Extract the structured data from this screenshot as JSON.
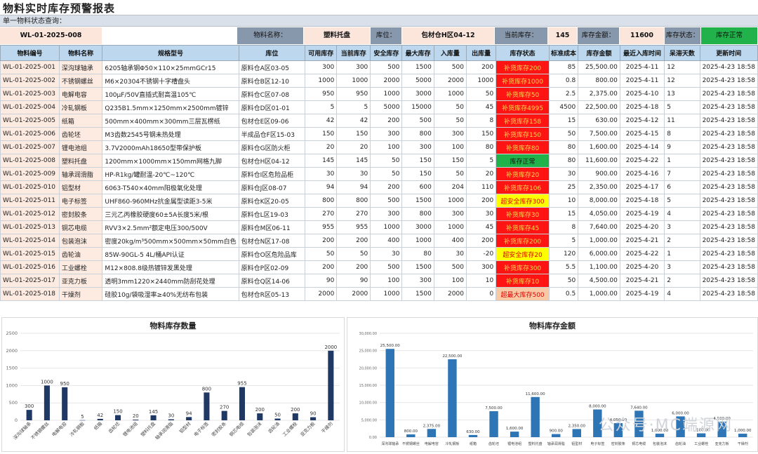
{
  "title": "物料实时库存预警报表",
  "subbar": "单一物料状态查询：",
  "query": {
    "code": "WL-01-2025-008",
    "name_label": "物料名称：",
    "name_value": "塑料托盘",
    "loc_label": "库位：",
    "loc_value": "包材仓H区04-12",
    "stock_label": "当前库存：",
    "stock_value": "145",
    "amount_label": "库存金额：",
    "amount_value": "11600",
    "status_label": "库存状态：",
    "status_value": "库存正常"
  },
  "table": {
    "headers": [
      "物料编号",
      "物料名称",
      "规格型号",
      "库位",
      "可用库存",
      "当前库存",
      "安全库存",
      "最大库存",
      "入库量",
      "出库量",
      "库存状态",
      "标准成本",
      "库存金额",
      "最近入库时间",
      "呆滞天数",
      "更新时间"
    ],
    "rows": [
      [
        "WL-01-2025-001",
        "深沟球轴承",
        "6205轴承钢Φ50×110×25mmGCr15",
        "原料仓A区03-05",
        "300",
        "300",
        "500",
        "1500",
        "500",
        "200",
        "补货库存200",
        "85",
        "25,500.00",
        "2025-4-11",
        "12",
        "2025-4-23 18:58"
      ],
      [
        "WL-01-2025-002",
        "不锈钢螺丝",
        "M6×20304不锈钢十字槽盘头",
        "原料仓B区12-10",
        "1000",
        "1000",
        "2000",
        "5000",
        "2000",
        "1000",
        "补货库存1000",
        "0.8",
        "800.00",
        "2025-4-11",
        "12",
        "2025-4-23 18:58"
      ],
      [
        "WL-01-2025-003",
        "电解电容",
        "100μF/50V直插式耐高温105℃",
        "原料仓C区07-08",
        "950",
        "950",
        "1000",
        "3000",
        "1000",
        "50",
        "补货库存50",
        "2.5",
        "2,375.00",
        "2025-4-10",
        "13",
        "2025-4-23 18:58"
      ],
      [
        "WL-01-2025-004",
        "冷轧钢板",
        "Q235B1.5mm×1250mm×2500mm镀锌",
        "原料仓D区01-01",
        "5",
        "5",
        "5000",
        "15000",
        "50",
        "45",
        "补货库存4995",
        "4500",
        "22,500.00",
        "2025-4-18",
        "5",
        "2025-4-23 18:58"
      ],
      [
        "WL-01-2025-005",
        "纸箱",
        "500mm×400mm×300mm三层瓦楞纸",
        "包材仓E区09-06",
        "42",
        "42",
        "200",
        "500",
        "50",
        "8",
        "补货库存158",
        "15",
        "630.00",
        "2025-4-12",
        "11",
        "2025-4-23 18:58"
      ],
      [
        "WL-01-2025-006",
        "齿轮坯",
        "M3齿数2545号钢未热处理",
        "半成品仓F区15-03",
        "150",
        "150",
        "300",
        "800",
        "300",
        "150",
        "补货库存150",
        "50",
        "7,500.00",
        "2025-4-15",
        "8",
        "2025-4-23 18:58"
      ],
      [
        "WL-01-2025-007",
        "锂电池组",
        "3.7V2000mAh18650型带保护板",
        "原料仓G区防火柜",
        "20",
        "20",
        "100",
        "300",
        "100",
        "80",
        "补货库存80",
        "80",
        "1,600.00",
        "2025-4-14",
        "9",
        "2025-4-23 18:58"
      ],
      [
        "WL-01-2025-008",
        "塑料托盘",
        "1200mm×1000mm×150mm网格九脚",
        "包材仓H区04-12",
        "145",
        "145",
        "50",
        "150",
        "150",
        "5",
        "库存正常",
        "80",
        "11,600.00",
        "2025-4-22",
        "1",
        "2025-4-23 18:58"
      ],
      [
        "WL-01-2025-009",
        "轴承润滑脂",
        "HP-R1kg/罐耐温-20℃~120℃",
        "原料仓I区危险品柜",
        "30",
        "30",
        "50",
        "150",
        "50",
        "20",
        "补货库存20",
        "30",
        "900.00",
        "2025-4-16",
        "7",
        "2025-4-23 18:58"
      ],
      [
        "WL-01-2025-010",
        "铝型材",
        "6063-T540×40mm阳极氧化处理",
        "原料仓J区08-07",
        "94",
        "94",
        "200",
        "600",
        "204",
        "110",
        "补货库存106",
        "25",
        "2,350.00",
        "2025-4-17",
        "6",
        "2025-4-23 18:58"
      ],
      [
        "WL-01-2025-011",
        "电子标签",
        "UHF860-960MHz抗金属型读距3-5米",
        "原料仓K区20-05",
        "800",
        "800",
        "500",
        "1500",
        "1000",
        "200",
        "超安全库存300",
        "10",
        "8,000.00",
        "2025-4-18",
        "5",
        "2025-4-23 18:58"
      ],
      [
        "WL-01-2025-012",
        "密封胶条",
        "三元乙丙橡胶硬度60±5A长度5米/根",
        "原料仓L区19-03",
        "270",
        "270",
        "300",
        "800",
        "300",
        "30",
        "补货库存30",
        "15",
        "4,050.00",
        "2025-4-19",
        "4",
        "2025-4-23 18:58"
      ],
      [
        "WL-01-2025-013",
        "铜芯电缆",
        "RVV3×2.5mm²额定电压300/500V",
        "原料仓M区06-11",
        "955",
        "955",
        "1000",
        "3000",
        "1000",
        "45",
        "补货库存45",
        "8",
        "7,640.00",
        "2025-4-20",
        "3",
        "2025-4-23 18:58"
      ],
      [
        "WL-01-2025-014",
        "包装泡沫",
        "密度20kg/m³500mm×500mm×50mm白色",
        "包材仓N区17-08",
        "200",
        "200",
        "400",
        "1000",
        "400",
        "200",
        "补货库存200",
        "5",
        "1,000.00",
        "2025-4-21",
        "2",
        "2025-4-23 18:58"
      ],
      [
        "WL-01-2025-015",
        "齿轮油",
        "85W-90GL-5 4L/桶API认证",
        "原料仓O区危险品库",
        "50",
        "50",
        "30",
        "80",
        "30",
        "-20",
        "超安全库存20",
        "120",
        "6,000.00",
        "2025-4-22",
        "1",
        "2025-4-23 18:58"
      ],
      [
        "WL-01-2025-016",
        "工业螺栓",
        "M12×808.8级热镀锌发黑处理",
        "原料仓P区02-09",
        "200",
        "200",
        "500",
        "1500",
        "500",
        "300",
        "补货库存300",
        "5.5",
        "1,100.00",
        "2025-4-20",
        "3",
        "2025-4-23 18:58"
      ],
      [
        "WL-01-2025-017",
        "亚克力板",
        "透明3mm1220×2440mm防刮花处理",
        "原料仓Q区14-06",
        "90",
        "90",
        "100",
        "300",
        "100",
        "10",
        "补货库存10",
        "50",
        "4,500.00",
        "2025-4-21",
        "2",
        "2025-4-23 18:58"
      ],
      [
        "WL-01-2025-018",
        "干燥剂",
        "硅胶10g/袋吸湿率≥40%无纺布包装",
        "包材仓R区05-13",
        "2000",
        "2000",
        "1000",
        "1500",
        "2000",
        "0",
        "超最大库存500",
        "0.5",
        "1,000.00",
        "2025-4-19",
        "4",
        "2025-4-23 18:58"
      ]
    ],
    "status_kind": [
      "red",
      "red",
      "red",
      "red",
      "red",
      "red",
      "red",
      "green",
      "red",
      "red",
      "yellow",
      "red",
      "red",
      "red",
      "yellow",
      "red",
      "red",
      "orange"
    ],
    "status_colors": {
      "red": "#ff1414",
      "green": "#22b24c",
      "yellow": "#ffff00",
      "orange": "#f9c9a6"
    }
  },
  "chart_data": [
    {
      "type": "bar",
      "title": "物料库存数量",
      "categories": [
        "深沟球轴承",
        "不锈钢螺丝",
        "电解电容",
        "冷轧钢板",
        "纸箱",
        "齿轮坯",
        "锂电池组",
        "塑料托盘",
        "轴承润滑脂",
        "铝型材",
        "电子标签",
        "密封胶条",
        "铜芯电缆",
        "包装泡沫",
        "齿轮油",
        "工业螺栓",
        "亚克力板",
        "干燥剂"
      ],
      "values": [
        300,
        1000,
        950,
        5,
        42,
        150,
        20,
        145,
        30,
        94,
        800,
        270,
        955,
        200,
        50,
        200,
        90,
        2000
      ],
      "ylim": [
        0,
        2500
      ],
      "yticks": [
        0,
        500,
        1000,
        1500,
        2000,
        2500
      ],
      "color": "#1f3864"
    },
    {
      "type": "bar",
      "title": "物料库存金额",
      "categories": [
        "深沟球轴承",
        "不锈钢螺丝",
        "电解电容",
        "冷轧钢板",
        "纸箱",
        "齿轮坯",
        "锂电池组",
        "塑料托盘",
        "轴承润滑脂",
        "铝型材",
        "电子标签",
        "密封胶条",
        "铜芯电缆",
        "包装泡沫",
        "齿轮油",
        "工业螺栓",
        "亚克力板",
        "干燥剂"
      ],
      "values": [
        25500,
        800,
        2375,
        22500,
        630,
        7500,
        1600,
        11600,
        900,
        2350,
        8000,
        4050,
        7640,
        1000,
        6000,
        1100,
        4500,
        1000
      ],
      "value_labels": [
        "25,500.00",
        "800.00",
        "2,375.00",
        "22,500.00",
        "630.00",
        "7,500.00",
        "1,600.00",
        "11,600.00",
        "900.00",
        "2,350.00",
        "8,000.00",
        "4,050.00",
        "7,640.00",
        "1,000.00",
        "6,000.00",
        "1,100.00",
        "4,500.00",
        "1,000.00"
      ],
      "ylim": [
        0,
        30000
      ],
      "yticks": [
        "0.00",
        "5,000.00",
        "10,000.00",
        "15,000.00",
        "20,000.00",
        "25,000.00",
        "30,000.00"
      ],
      "color": "#2e75b6"
    }
  ],
  "watermark": "公众号·MC端源网"
}
